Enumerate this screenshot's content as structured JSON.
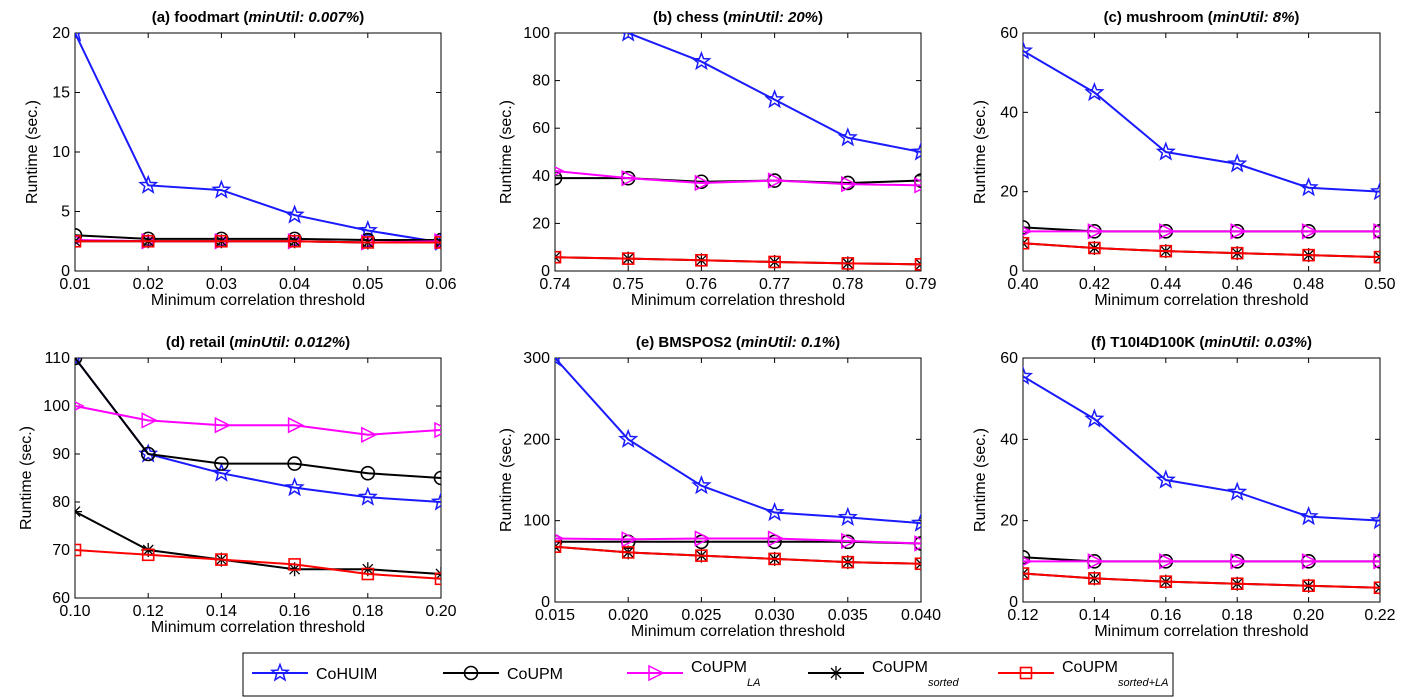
{
  "chart_data": [
    {
      "type": "line",
      "title_main": "(a) foodmart (",
      "title_italic": "minUtil: 0.007%",
      "title_end": ")",
      "xlabel": "Minimum correlation threshold",
      "ylabel": "Runtime (sec.)",
      "x": [
        0.01,
        0.02,
        0.03,
        0.04,
        0.05,
        0.06
      ],
      "xtick_labels": [
        "0.01",
        "0.02",
        "0.03",
        "0.04",
        "0.05",
        "0.06"
      ],
      "xlim": [
        0.01,
        0.06
      ],
      "ylim": [
        0,
        20
      ],
      "yticks": [
        0,
        5,
        10,
        15,
        20
      ],
      "ytick_labels": [
        "0",
        "5",
        "10",
        "15",
        "20"
      ],
      "series": [
        {
          "key": "cohuim",
          "values": [
            20,
            7.2,
            6.8,
            4.7,
            3.4,
            2.4
          ]
        },
        {
          "key": "coupm",
          "values": [
            3.0,
            2.7,
            2.7,
            2.7,
            2.6,
            2.6
          ]
        },
        {
          "key": "coupm_la",
          "values": [
            2.6,
            2.5,
            2.5,
            2.5,
            2.4,
            2.5
          ]
        },
        {
          "key": "coupm_sorted",
          "values": [
            2.5,
            2.5,
            2.5,
            2.5,
            2.4,
            2.4
          ]
        },
        {
          "key": "coupm_sorted_la",
          "values": [
            2.5,
            2.5,
            2.5,
            2.5,
            2.4,
            2.4
          ]
        }
      ]
    },
    {
      "type": "line",
      "title_main": "(b) chess (",
      "title_italic": "minUtil: 20%",
      "title_end": ")",
      "xlabel": "Minimum correlation threshold",
      "ylabel": "Runtime (sec.)",
      "x": [
        0.74,
        0.75,
        0.76,
        0.77,
        0.78,
        0.79
      ],
      "xtick_labels": [
        "0.74",
        "0.75",
        "0.76",
        "0.77",
        "0.78",
        "0.79"
      ],
      "xlim": [
        0.74,
        0.79
      ],
      "ylim": [
        0,
        100
      ],
      "yticks": [
        0,
        20,
        40,
        60,
        80,
        100
      ],
      "ytick_labels": [
        "0",
        "20",
        "40",
        "60",
        "80",
        "100"
      ],
      "series": [
        {
          "key": "cohuim",
          "values": [
            110,
            100,
            88,
            72,
            56,
            50
          ]
        },
        {
          "key": "coupm",
          "values": [
            39,
            39,
            37.5,
            38,
            37,
            38
          ]
        },
        {
          "key": "coupm_la",
          "values": [
            42,
            39,
            37,
            38,
            36.5,
            36
          ]
        },
        {
          "key": "coupm_sorted",
          "values": [
            5.8,
            5.2,
            4.5,
            3.8,
            3.2,
            2.8
          ]
        },
        {
          "key": "coupm_sorted_la",
          "values": [
            5.8,
            5.2,
            4.5,
            3.8,
            3.2,
            2.8
          ]
        }
      ]
    },
    {
      "type": "line",
      "title_main": "(c) mushroom (",
      "title_italic": "minUtil: 8%",
      "title_end": ")",
      "xlabel": "Minimum correlation threshold",
      "ylabel": "Runtime (sec.)",
      "x": [
        0.4,
        0.42,
        0.44,
        0.46,
        0.48,
        0.5
      ],
      "xtick_labels": [
        "0.40",
        "0.42",
        "0.44",
        "0.46",
        "0.48",
        "0.50"
      ],
      "xlim": [
        0.4,
        0.5
      ],
      "ylim": [
        0,
        60
      ],
      "yticks": [
        0,
        20,
        40,
        60
      ],
      "ytick_labels": [
        "0",
        "20",
        "40",
        "60"
      ],
      "series": [
        {
          "key": "cohuim",
          "values": [
            55.5,
            45,
            30,
            27,
            21,
            20
          ]
        },
        {
          "key": "coupm",
          "values": [
            11,
            10,
            10,
            10,
            10,
            10
          ]
        },
        {
          "key": "coupm_la",
          "values": [
            10,
            10,
            10,
            10,
            10,
            10
          ]
        },
        {
          "key": "coupm_sorted",
          "values": [
            7,
            5.8,
            5,
            4.5,
            4,
            3.5
          ]
        },
        {
          "key": "coupm_sorted_la",
          "values": [
            7,
            5.8,
            5,
            4.5,
            4,
            3.5
          ]
        }
      ]
    },
    {
      "type": "line",
      "title_main": "(d) retail (",
      "title_italic": "minUtil: 0.012%",
      "title_end": ")",
      "xlabel": "Minimum correlation threshold",
      "ylabel": "Runtime (sec.)",
      "x": [
        0.1,
        0.12,
        0.14,
        0.16,
        0.18,
        0.2
      ],
      "xtick_labels": [
        "0.10",
        "0.12",
        "0.14",
        "0.16",
        "0.18",
        "0.20"
      ],
      "xlim": [
        0.1,
        0.2
      ],
      "ylim": [
        60,
        110
      ],
      "yticks": [
        60,
        70,
        80,
        90,
        100,
        110
      ],
      "ytick_labels": [
        "60",
        "70",
        "80",
        "90",
        "100",
        "110"
      ],
      "series": [
        {
          "key": "cohuim",
          "values": [
            110,
            90,
            86,
            83,
            81,
            80
          ]
        },
        {
          "key": "coupm",
          "values": [
            110,
            90,
            88,
            88,
            86,
            85
          ]
        },
        {
          "key": "coupm_la",
          "values": [
            100,
            97,
            96,
            96,
            94,
            95
          ]
        },
        {
          "key": "coupm_sorted",
          "values": [
            78,
            70,
            68,
            66,
            66,
            65
          ]
        },
        {
          "key": "coupm_sorted_la",
          "values": [
            70,
            69,
            68,
            67,
            65,
            64
          ]
        }
      ]
    },
    {
      "type": "line",
      "title_main": "(e) BMSPOS2 (",
      "title_italic": "minUtil: 0.1%",
      "title_end": ")",
      "xlabel": "Minimum correlation threshold",
      "ylabel": "Runtime (sec.)",
      "x": [
        0.015,
        0.02,
        0.025,
        0.03,
        0.035,
        0.04
      ],
      "xtick_labels": [
        "0.015",
        "0.020",
        "0.025",
        "0.030",
        "0.035",
        "0.040"
      ],
      "xlim": [
        0.015,
        0.04
      ],
      "ylim": [
        0,
        300
      ],
      "yticks": [
        0,
        100,
        200,
        300
      ],
      "ytick_labels": [
        "0",
        "100",
        "200",
        "300"
      ],
      "series": [
        {
          "key": "cohuim",
          "values": [
            300,
            200,
            143,
            110,
            104,
            97
          ]
        },
        {
          "key": "coupm",
          "values": [
            74,
            74,
            74,
            74,
            74,
            72
          ]
        },
        {
          "key": "coupm_la",
          "values": [
            78,
            77,
            78,
            78,
            75,
            72
          ]
        },
        {
          "key": "coupm_sorted",
          "values": [
            68,
            61,
            57,
            53,
            49,
            47
          ]
        },
        {
          "key": "coupm_sorted_la",
          "values": [
            68,
            61,
            57,
            53,
            49,
            47
          ]
        }
      ]
    },
    {
      "type": "line",
      "title_main": "(f) T10I4D100K (",
      "title_italic": "minUtil: 0.03%",
      "title_end": ")",
      "xlabel": "Minimum correlation threshold",
      "ylabel": "Runtime (sec.)",
      "x": [
        0.12,
        0.14,
        0.16,
        0.18,
        0.2,
        0.22
      ],
      "xtick_labels": [
        "0.12",
        "0.14",
        "0.16",
        "0.18",
        "0.20",
        "0.22"
      ],
      "xlim": [
        0.12,
        0.22
      ],
      "ylim": [
        0,
        60
      ],
      "yticks": [
        0,
        20,
        40,
        60
      ],
      "ytick_labels": [
        "0",
        "20",
        "40",
        "60"
      ],
      "series": [
        {
          "key": "cohuim",
          "values": [
            55.5,
            45,
            30,
            27,
            21,
            20
          ]
        },
        {
          "key": "coupm",
          "values": [
            11,
            10,
            10,
            10,
            10,
            10
          ]
        },
        {
          "key": "coupm_la",
          "values": [
            10,
            10,
            10,
            10,
            10,
            10
          ]
        },
        {
          "key": "coupm_sorted",
          "values": [
            7,
            5.8,
            5,
            4.5,
            4,
            3.5
          ]
        },
        {
          "key": "coupm_sorted_la",
          "values": [
            7,
            5.8,
            5,
            4.5,
            4,
            3.5
          ]
        }
      ]
    }
  ],
  "legend": {
    "placement": "bottom-center",
    "entries": [
      {
        "key": "cohuim",
        "name": "CoHUIM",
        "sub": "",
        "color": "#1a1aff",
        "marker": "star"
      },
      {
        "key": "coupm",
        "name": "CoUPM",
        "sub": "",
        "color": "#000000",
        "marker": "circle"
      },
      {
        "key": "coupm_la",
        "name": "CoUPM",
        "sub": "LA",
        "color": "#ff00ff",
        "marker": "triangle-right"
      },
      {
        "key": "coupm_sorted",
        "name": "CoUPM",
        "sub": "sorted",
        "color": "#000000",
        "marker": "asterisk"
      },
      {
        "key": "coupm_sorted_la",
        "name": "CoUPM",
        "sub": "sorted+LA",
        "color": "#ff0000",
        "marker": "square"
      }
    ]
  }
}
